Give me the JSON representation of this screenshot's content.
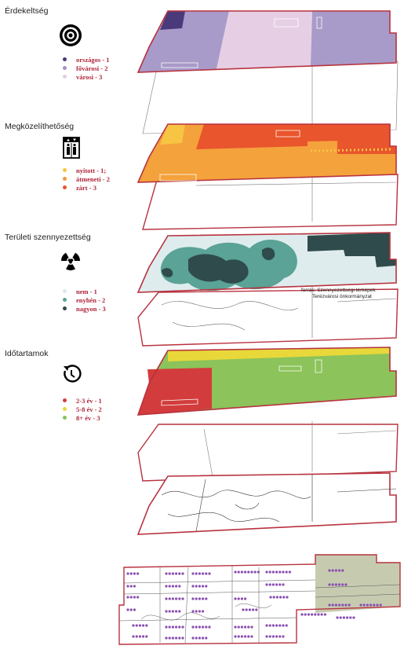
{
  "sections": [
    {
      "title": "Érdekeltség",
      "icon": "target-icon",
      "legend": [
        {
          "label": "országos - 1",
          "color": "#4b3a7a"
        },
        {
          "label": "fővárosi - 2",
          "color": "#a594c4"
        },
        {
          "label": "városi - 3",
          "color": "#e3cde4"
        }
      ]
    },
    {
      "title": "Megközelíthetőség",
      "icon": "elevator-icon",
      "legend": [
        {
          "label": "nyitott - 1;",
          "color": "#f7c444"
        },
        {
          "label": "átmeneti - 2",
          "color": "#f09a3e"
        },
        {
          "label": "zárt - 3",
          "color": "#e9552c"
        }
      ]
    },
    {
      "title": "Területi szennyezettség",
      "icon": "radiation-icon",
      "legend": [
        {
          "label": "nem - 1",
          "color": "#dce9ec"
        },
        {
          "label": "enyhén - 2",
          "color": "#5aa396"
        },
        {
          "label": "nagyon - 3",
          "color": "#2f4b4b"
        }
      ]
    },
    {
      "title": "Időtartamok",
      "icon": "clock-rotate-icon",
      "legend": [
        {
          "label": "2-3 év - 1",
          "color": "#d33c3c"
        },
        {
          "label": "5-8 év - 2",
          "color": "#e8d83a"
        },
        {
          "label": "8+ év - 3",
          "color": "#86c25a"
        }
      ]
    }
  ],
  "source_note": {
    "line1": "forrás: Szennyezettségi térképek",
    "line2": "Terézvárosi önkormányzat"
  },
  "colors": {
    "outline": "#b7323e",
    "hatch_purple": "#8a4fb0",
    "park_green": "#c6cbb0"
  }
}
